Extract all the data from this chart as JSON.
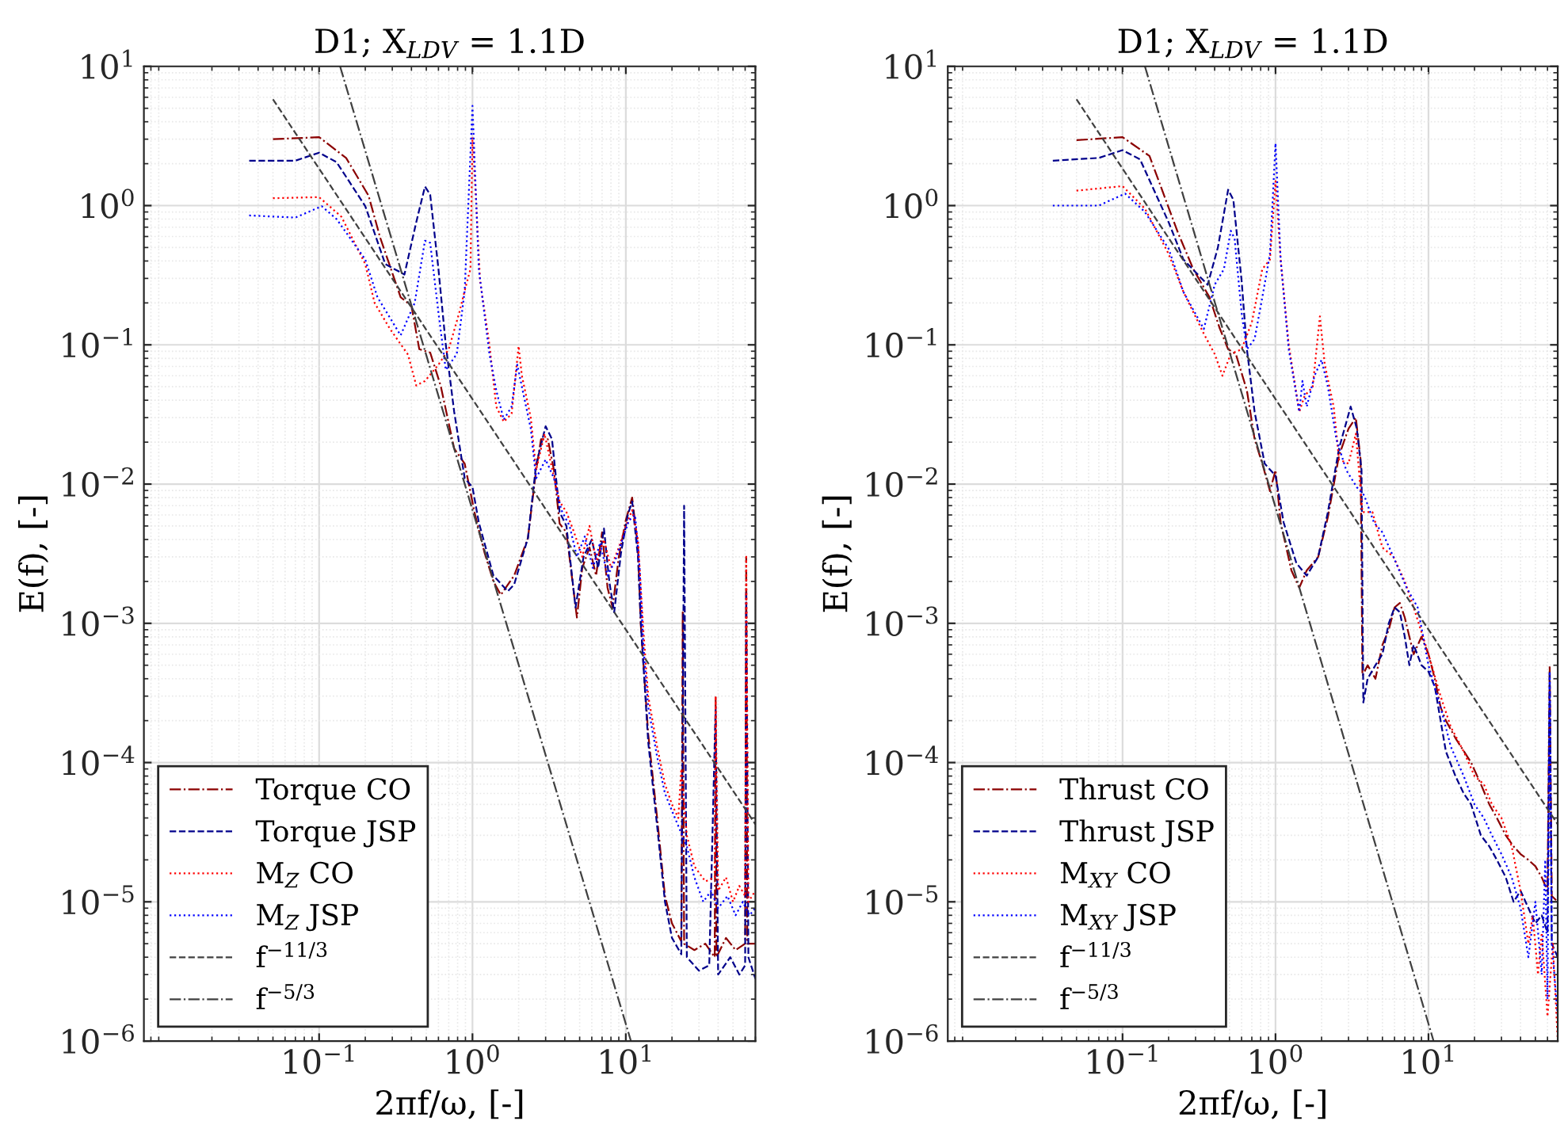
{
  "chart_data": [
    {
      "type": "line",
      "title": "D1; X$_{LDV}$ = 1.1D",
      "xlabel": "2πf/ω, [-]",
      "ylabel": "E(f), [-]",
      "log": "xy",
      "xlim": [
        0.0072,
        70
      ],
      "ylim": [
        1e-06,
        10
      ],
      "xticks": [
        {
          "value": 0.1,
          "label": "10$^{−1}$"
        },
        {
          "value": 1,
          "label": "10$^{0}$"
        },
        {
          "value": 10,
          "label": "10$^{1}$"
        }
      ],
      "yticks": [
        {
          "value": 1e-06,
          "label": "10$^{−6}$"
        },
        {
          "value": 1e-05,
          "label": "10$^{−5}$"
        },
        {
          "value": 0.0001,
          "label": "10$^{−4}$"
        },
        {
          "value": 0.001,
          "label": "10$^{−3}$"
        },
        {
          "value": 0.01,
          "label": "10$^{−2}$"
        },
        {
          "value": 0.1,
          "label": "10$^{−1}$"
        },
        {
          "value": 1,
          "label": "10$^{0}$"
        },
        {
          "value": 10,
          "label": "10$^{1}$"
        }
      ],
      "grid": true,
      "legend": "bottom left",
      "series": [
        {
          "name": "Torque CO",
          "color": "#8b0000",
          "line_style": "dashdot",
          "x": [
            0.05,
            0.1,
            0.15,
            0.21,
            0.25,
            0.34,
            0.4,
            0.45,
            0.53,
            0.62,
            0.76,
            0.89,
            1.03,
            1.2,
            1.37,
            1.53,
            1.87,
            2.3,
            2.6,
            2.8,
            3.1,
            3.4,
            3.7,
            4.1,
            4.6,
            4.8,
            5.2,
            5.8,
            6.4,
            7.0,
            7.6,
            8.2,
            9.0,
            10,
            11,
            12,
            12.5,
            14,
            16,
            18,
            20,
            23,
            23.5,
            24,
            28,
            33,
            38,
            38.5,
            39,
            45,
            52,
            60,
            61,
            62,
            70
          ],
          "values": [
            3.0,
            3.1,
            2.2,
            1.18,
            0.59,
            0.22,
            0.19,
            0.093,
            0.088,
            0.051,
            0.018,
            0.014,
            0.0063,
            0.0032,
            0.002,
            0.0016,
            0.0022,
            0.0041,
            0.0126,
            0.021,
            0.021,
            0.0126,
            0.0052,
            0.0045,
            0.0016,
            0.0011,
            0.0025,
            0.0035,
            0.0022,
            0.0045,
            0.0018,
            0.0013,
            0.003,
            0.0055,
            0.008,
            0.0035,
            0.001,
            0.00016,
            4e-05,
            1.1e-05,
            7e-06,
            5.2e-06,
            0.0012,
            5e-06,
            4.5e-06,
            5e-06,
            4e-06,
            0.0003,
            4e-06,
            5.5e-06,
            4.5e-06,
            5e-06,
            0.003,
            5e-06,
            5e-06
          ]
        },
        {
          "name": "Torque JSP",
          "color": "#00008b",
          "line_style": "dashed",
          "x": [
            0.035,
            0.07,
            0.1,
            0.13,
            0.2,
            0.27,
            0.36,
            0.43,
            0.49,
            0.53,
            0.6,
            0.67,
            0.76,
            0.89,
            1.0,
            1.1,
            1.37,
            1.7,
            1.87,
            2.3,
            2.6,
            3.0,
            3.3,
            3.7,
            4.1,
            4.7,
            5.3,
            6,
            6.6,
            7.2,
            7.8,
            8.4,
            9.3,
            10.3,
            11,
            12,
            12.6,
            14,
            16,
            18,
            20,
            23,
            24,
            25,
            30,
            35,
            38.5,
            40,
            48,
            55,
            60,
            61,
            63,
            70
          ],
          "values": [
            2.1,
            2.1,
            2.4,
            2.05,
            0.99,
            0.38,
            0.32,
            0.76,
            1.37,
            1.2,
            0.35,
            0.1,
            0.033,
            0.011,
            0.0095,
            0.0053,
            0.0022,
            0.0017,
            0.0019,
            0.0041,
            0.0138,
            0.026,
            0.021,
            0.0063,
            0.005,
            0.0013,
            0.003,
            0.004,
            0.0025,
            0.0048,
            0.002,
            0.0012,
            0.0032,
            0.006,
            0.0075,
            0.003,
            0.0009,
            0.00014,
            3.5e-05,
            1e-05,
            5.5e-06,
            4.2e-06,
            0.007,
            4e-06,
            3.2e-06,
            3.5e-06,
            0.00025,
            3e-06,
            4e-06,
            3e-06,
            3.5e-06,
            0.0017,
            4e-06,
            2.8e-06
          ]
        },
        {
          "name": "M$_{Z}$ CO",
          "color": "#ff0000",
          "line_style": "dotted",
          "x": [
            0.05,
            0.1,
            0.14,
            0.2,
            0.23,
            0.29,
            0.38,
            0.43,
            0.49,
            0.6,
            0.7,
            0.82,
            0.89,
            0.97,
            1.0,
            1.06,
            1.12,
            1.29,
            1.43,
            1.6,
            1.8,
            2.0,
            2.1,
            2.4,
            2.6,
            2.95,
            3.3,
            3.7,
            4.1,
            4.6,
            5.2,
            5.8,
            6.4,
            7.2,
            8,
            9,
            10,
            11,
            12,
            13,
            14,
            16,
            18,
            20,
            22,
            23,
            25,
            28,
            33,
            38,
            38.5,
            40,
            45,
            50,
            55,
            60,
            61,
            63,
            70
          ],
          "values": [
            1.13,
            1.15,
            0.83,
            0.38,
            0.2,
            0.13,
            0.085,
            0.051,
            0.055,
            0.072,
            0.093,
            0.17,
            0.245,
            0.35,
            3.1,
            1.0,
            0.29,
            0.1,
            0.036,
            0.028,
            0.032,
            0.098,
            0.06,
            0.03,
            0.0126,
            0.023,
            0.013,
            0.0075,
            0.0063,
            0.0045,
            0.003,
            0.005,
            0.0028,
            0.004,
            0.0025,
            0.0035,
            0.005,
            0.0065,
            0.004,
            0.0009,
            0.0003,
            0.00013,
            7e-05,
            5e-05,
            4e-05,
            9e-05,
            3e-05,
            1.8e-05,
            1.4e-05,
            1.5e-05,
            0.0003,
            1.2e-05,
            1.5e-05,
            1e-05,
            1.3e-05,
            1.1e-05,
            0.003,
            1e-05,
            1.2e-05
          ]
        },
        {
          "name": "M$_{Z}$ JSP",
          "color": "#0000ff",
          "line_style": "dotted",
          "x": [
            0.035,
            0.07,
            0.104,
            0.13,
            0.2,
            0.24,
            0.34,
            0.42,
            0.49,
            0.53,
            0.6,
            0.67,
            0.79,
            0.89,
            1.0,
            1.1,
            1.29,
            1.43,
            1.6,
            1.8,
            1.96,
            2.1,
            2.4,
            2.6,
            3,
            3.4,
            3.8,
            4.3,
            4.8,
            5.4,
            6.1,
            6.8,
            7.6,
            8.5,
            9.5,
            10.5,
            11.5,
            12.3,
            13,
            14,
            16,
            18,
            20,
            22,
            25,
            28,
            32,
            36,
            40,
            46,
            52,
            58,
            64,
            70
          ],
          "values": [
            0.85,
            0.82,
            0.99,
            0.8,
            0.41,
            0.22,
            0.117,
            0.2,
            0.56,
            0.54,
            0.17,
            0.066,
            0.086,
            0.245,
            5.2,
            0.35,
            0.086,
            0.047,
            0.029,
            0.036,
            0.072,
            0.05,
            0.025,
            0.011,
            0.015,
            0.011,
            0.0065,
            0.005,
            0.003,
            0.0042,
            0.0025,
            0.0038,
            0.0022,
            0.0028,
            0.004,
            0.0055,
            0.006,
            0.0025,
            0.0007,
            0.00025,
            0.00011,
            6e-05,
            4.5e-05,
            3.5e-05,
            2.5e-05,
            1.5e-05,
            1e-05,
            1.2e-05,
            9e-06,
            1.1e-05,
            8e-06,
            1e-05,
            8e-06,
            9e-06
          ]
        },
        {
          "name": "f$^{−11/3}$",
          "color": "#404040",
          "line_style": "dashed",
          "x": [
            0.05,
            70
          ],
          "values": [
            5.8,
            3.6e-05
          ]
        },
        {
          "name": "f$^{−5/3}$",
          "color": "#404040",
          "line_style": "dashdot",
          "x": [
            0.137,
            10.8
          ],
          "values": [
            10,
            1e-06
          ]
        }
      ]
    },
    {
      "type": "line",
      "title": "D1; X$_{LDV}$ = 1.1D",
      "xlabel": "2πf/ω, [-]",
      "ylabel": "E(f), [-]",
      "log": "xy",
      "xlim": [
        0.0072,
        70
      ],
      "ylim": [
        1e-06,
        10
      ],
      "xticks": [
        {
          "value": 0.1,
          "label": "10$^{−1}$"
        },
        {
          "value": 1,
          "label": "10$^{0}$"
        },
        {
          "value": 10,
          "label": "10$^{1}$"
        }
      ],
      "yticks": [
        {
          "value": 1e-06,
          "label": "10$^{−6}$"
        },
        {
          "value": 1e-05,
          "label": "10$^{−5}$"
        },
        {
          "value": 0.0001,
          "label": "10$^{−4}$"
        },
        {
          "value": 0.001,
          "label": "10$^{−3}$"
        },
        {
          "value": 0.01,
          "label": "10$^{−2}$"
        },
        {
          "value": 0.1,
          "label": "10$^{−1}$"
        },
        {
          "value": 1,
          "label": "10$^{0}$"
        },
        {
          "value": 10,
          "label": "10$^{1}$"
        }
      ],
      "grid": true,
      "legend": "bottom left",
      "series": [
        {
          "name": "Thrust CO",
          "color": "#8b0000",
          "line_style": "dashdot",
          "x": [
            0.05,
            0.1,
            0.15,
            0.23,
            0.29,
            0.37,
            0.43,
            0.49,
            0.55,
            0.65,
            0.73,
            0.82,
            0.92,
            1.0,
            1.08,
            1.27,
            1.43,
            1.6,
            1.9,
            2.2,
            2.6,
            3.0,
            3.35,
            3.6,
            3.7,
            4,
            4.5,
            5,
            5.5,
            6,
            6.5,
            7,
            7.5,
            8,
            9,
            10,
            11,
            12,
            13,
            15,
            19,
            22,
            25,
            28,
            32,
            36,
            40,
            45,
            50,
            55,
            60,
            62,
            64,
            70
          ],
          "values": [
            2.95,
            3.1,
            2.27,
            0.64,
            0.35,
            0.22,
            0.133,
            0.093,
            0.086,
            0.047,
            0.021,
            0.014,
            0.0089,
            0.0126,
            0.0053,
            0.0024,
            0.0018,
            0.0024,
            0.003,
            0.0058,
            0.016,
            0.025,
            0.03,
            0.015,
            0.00042,
            0.0005,
            0.0004,
            0.0007,
            0.0009,
            0.0013,
            0.0014,
            0.0011,
            0.0008,
            0.0006,
            0.0008,
            0.0006,
            0.0004,
            0.00025,
            0.0002,
            0.00015,
            0.0001,
            7e-05,
            5e-05,
            4e-05,
            3e-05,
            2.5e-05,
            2.2e-05,
            2e-05,
            1.8e-05,
            1.5e-05,
            1.2e-05,
            0.0005,
            1.1e-05,
            1e-05
          ]
        },
        {
          "name": "Thrust JSP",
          "color": "#00008b",
          "line_style": "dashed",
          "x": [
            0.035,
            0.07,
            0.1,
            0.13,
            0.2,
            0.25,
            0.36,
            0.42,
            0.49,
            0.53,
            0.6,
            0.65,
            0.73,
            0.85,
            1.0,
            1.13,
            1.37,
            1.6,
            1.9,
            2.2,
            2.6,
            3.1,
            3.4,
            3.65,
            3.75,
            4,
            4.5,
            5,
            5.5,
            6,
            6.5,
            7,
            7.5,
            8,
            9,
            10,
            11,
            12,
            13,
            15,
            17,
            19,
            22,
            25,
            28,
            32,
            36,
            40,
            45,
            50,
            55,
            60,
            62,
            64,
            70
          ],
          "values": [
            2.1,
            2.2,
            2.5,
            2.15,
            0.76,
            0.41,
            0.27,
            0.5,
            1.3,
            1.1,
            0.29,
            0.093,
            0.033,
            0.014,
            0.0115,
            0.0053,
            0.0027,
            0.0022,
            0.003,
            0.0063,
            0.018,
            0.036,
            0.025,
            0.0126,
            0.00027,
            0.0004,
            0.0005,
            0.0006,
            0.001,
            0.0013,
            0.0012,
            0.0008,
            0.0005,
            0.0007,
            0.0005,
            0.00045,
            0.00035,
            0.0002,
            0.00012,
            8e-05,
            6e-05,
            5e-05,
            3e-05,
            2.5e-05,
            2e-05,
            1.5e-05,
            1e-05,
            1.2e-05,
            9e-06,
            7e-06,
            8e-06,
            6e-06,
            0.00045,
            5e-06,
            4e-06
          ]
        },
        {
          "name": "M$_{XY}$ CO",
          "color": "#ff0000",
          "line_style": "dotted",
          "x": [
            0.05,
            0.1,
            0.14,
            0.2,
            0.25,
            0.34,
            0.4,
            0.45,
            0.51,
            0.6,
            0.7,
            0.82,
            0.92,
            1.0,
            1.08,
            1.22,
            1.43,
            1.55,
            1.75,
            1.95,
            2.1,
            2.4,
            2.6,
            3.0,
            3.35,
            3.7,
            4.3,
            5,
            5.9,
            7,
            8,
            10,
            12,
            14,
            17,
            20,
            23,
            26,
            30,
            35,
            40,
            45,
            48,
            52,
            55,
            60,
            65,
            70
          ],
          "values": [
            1.28,
            1.38,
            0.95,
            0.45,
            0.24,
            0.12,
            0.086,
            0.06,
            0.086,
            0.093,
            0.145,
            0.35,
            0.41,
            1.5,
            0.41,
            0.1,
            0.033,
            0.043,
            0.05,
            0.16,
            0.072,
            0.036,
            0.015,
            0.014,
            0.023,
            0.0063,
            0.0063,
            0.0035,
            0.003,
            0.002,
            0.0013,
            0.0006,
            0.0003,
            0.00018,
            0.00012,
            8e-05,
            7e-05,
            5e-05,
            4e-05,
            2.5e-05,
            1.2e-05,
            5e-06,
            8e-06,
            3e-06,
            6e-06,
            1.5e-06,
            5e-06,
            1e-06
          ]
        },
        {
          "name": "M$_{XY}$ JSP",
          "color": "#0000ff",
          "line_style": "dotted",
          "x": [
            0.035,
            0.07,
            0.104,
            0.14,
            0.2,
            0.25,
            0.34,
            0.4,
            0.46,
            0.51,
            0.54,
            0.6,
            0.65,
            0.73,
            0.82,
            0.92,
            1.0,
            1.08,
            1.22,
            1.43,
            1.5,
            1.6,
            1.8,
            2.0,
            2.2,
            2.5,
            2.9,
            3.4,
            3.8,
            4.4,
            5.0,
            5.9,
            7.2,
            8.5,
            10,
            12,
            14,
            17,
            20,
            23,
            26,
            30,
            35,
            40,
            45,
            50,
            55,
            58,
            60,
            62,
            64,
            70
          ],
          "values": [
            1.0,
            1.0,
            1.22,
            0.9,
            0.49,
            0.24,
            0.13,
            0.27,
            0.35,
            0.66,
            0.58,
            0.17,
            0.093,
            0.11,
            0.22,
            0.45,
            2.8,
            0.41,
            0.093,
            0.033,
            0.055,
            0.036,
            0.06,
            0.078,
            0.05,
            0.021,
            0.0126,
            0.0095,
            0.0083,
            0.0053,
            0.0045,
            0.003,
            0.0018,
            0.0013,
            0.0005,
            0.00025,
            0.00013,
            8e-05,
            5e-05,
            4e-05,
            3e-05,
            2.2e-05,
            1.5e-05,
            9e-06,
            4e-06,
            1e-05,
            3e-06,
            2e-05,
            2e-06,
            0.00045,
            5e-06,
            1.5e-06
          ]
        },
        {
          "name": "f$^{−11/3}$",
          "color": "#404040",
          "line_style": "dashed",
          "x": [
            0.05,
            70
          ],
          "values": [
            5.8,
            3.6e-05
          ]
        },
        {
          "name": "f$^{−5/3}$",
          "color": "#404040",
          "line_style": "dashdot",
          "x": [
            0.14,
            10.8
          ],
          "values": [
            10,
            1e-06
          ]
        }
      ]
    }
  ]
}
